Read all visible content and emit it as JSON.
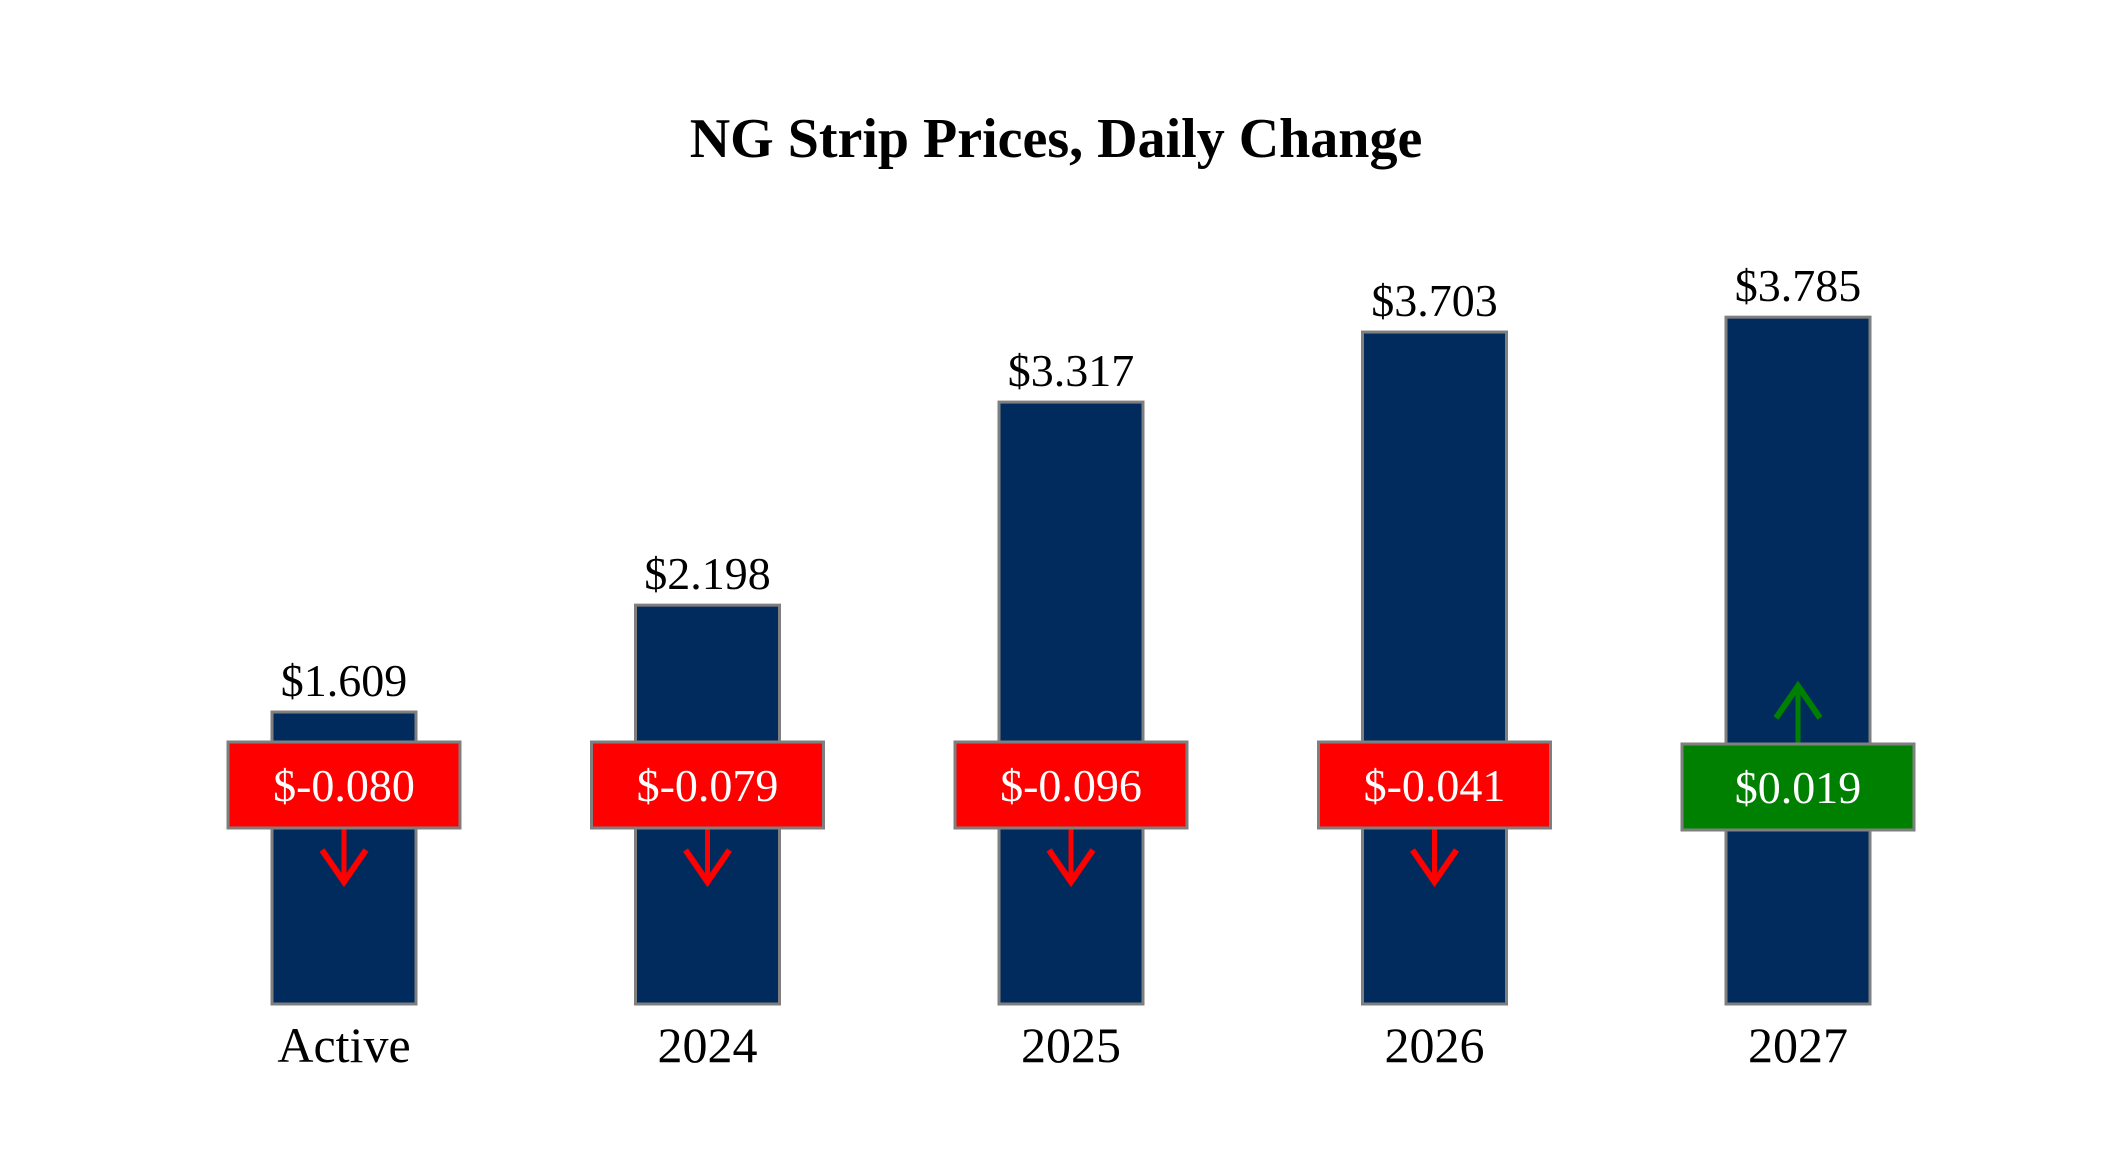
{
  "chart_data": {
    "type": "bar",
    "title": "NG Strip Prices, Daily Change",
    "categories": [
      "Active",
      "2024",
      "2025",
      "2026",
      "2027"
    ],
    "values": [
      1.609,
      2.198,
      3.317,
      3.703,
      3.785
    ],
    "value_labels": [
      "$1.609",
      "$2.198",
      "$3.317",
      "$3.703",
      "$3.785"
    ],
    "changes": [
      -0.08,
      -0.079,
      -0.096,
      -0.041,
      0.019
    ],
    "change_labels": [
      "$-0.080",
      "$-0.079",
      "$-0.096",
      "$-0.041",
      "$0.019"
    ],
    "xlabel": "",
    "ylabel": "",
    "ylim": [
      0,
      4.1
    ],
    "grid": false,
    "legend": "none"
  },
  "colors": {
    "bar_fill": "#002b5c",
    "bar_stroke": "#7f7f7f",
    "down": "#ff0000",
    "up": "#008000",
    "box_stroke": "#7f7f7f",
    "text": "#000000",
    "box_text": "#ffffff"
  },
  "icons": {
    "down": "arrow-down-icon",
    "up": "arrow-up-icon"
  }
}
